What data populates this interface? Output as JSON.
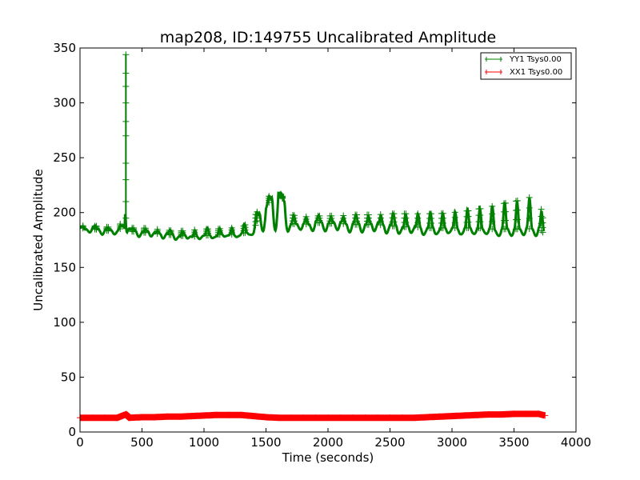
{
  "chart_data": {
    "type": "line",
    "title": "map208, ID:149755 Uncalibrated Amplitude",
    "xlabel": "Time (seconds)",
    "ylabel": "Uncalibrated Amplitude",
    "xlim": [
      0,
      4000
    ],
    "ylim": [
      0,
      350
    ],
    "xticks": [
      "0",
      "500",
      "1000",
      "1500",
      "2000",
      "2500",
      "3000",
      "3500",
      "4000"
    ],
    "yticks": [
      "0",
      "50",
      "100",
      "150",
      "200",
      "250",
      "300",
      "350"
    ],
    "grid": false,
    "legend": {
      "placement": "top-right",
      "entries": [
        "YY1 Tsys0.00",
        "XX1 Tsys0.00"
      ]
    },
    "series": [
      {
        "name": "YY1 Tsys0.00",
        "color": "#008000",
        "marker": "+",
        "x": [
          0,
          100,
          200,
          300,
          360,
          370,
          380,
          400,
          500,
          600,
          700,
          800,
          900,
          1000,
          1100,
          1200,
          1300,
          1400,
          1450,
          1500,
          1550,
          1600,
          1650,
          1700,
          1800,
          1900,
          2000,
          2100,
          2200,
          2300,
          2400,
          2500,
          2600,
          2700,
          2800,
          2900,
          3000,
          3100,
          3200,
          3300,
          3400,
          3500,
          3600,
          3700,
          3740
        ],
        "y": [
          186,
          185,
          184,
          182,
          190,
          344,
          195,
          183,
          182,
          181,
          180,
          179,
          178,
          179,
          180,
          180,
          181,
          183,
          200,
          204,
          215,
          218,
          210,
          190,
          189,
          191,
          190,
          190,
          189,
          189,
          189,
          188,
          187,
          187,
          186,
          186,
          186,
          186,
          186,
          185,
          185,
          185,
          185,
          186,
          181
        ],
        "peaks": [
          188,
          188,
          187,
          186,
          195,
          344,
          200,
          186,
          186,
          185,
          184,
          183,
          184,
          185,
          185,
          186,
          186,
          195,
          205,
          212,
          218,
          220,
          212,
          198,
          196,
          197,
          197,
          197,
          198,
          198,
          198,
          199,
          199,
          199,
          199,
          199,
          200,
          201,
          203,
          205,
          208,
          210,
          213,
          216,
          190
        ],
        "troughs": [
          183,
          182,
          181,
          180,
          182,
          185,
          182,
          180,
          179,
          178,
          177,
          176,
          176,
          177,
          177,
          177,
          178,
          180,
          181,
          182,
          183,
          184,
          183,
          183,
          184,
          184,
          184,
          184,
          183,
          183,
          183,
          182,
          181,
          181,
          180,
          180,
          180,
          180,
          180,
          179,
          179,
          179,
          179,
          180,
          180
        ]
      },
      {
        "name": "XX1 Tsys0.00",
        "color": "#ff0000",
        "marker": "+",
        "x": [
          0,
          100,
          200,
          300,
          370,
          400,
          500,
          600,
          700,
          800,
          900,
          1000,
          1100,
          1200,
          1300,
          1400,
          1500,
          1600,
          1700,
          1800,
          1900,
          2000,
          2100,
          2200,
          2300,
          2400,
          2500,
          2600,
          2700,
          2800,
          2900,
          3000,
          3100,
          3200,
          3300,
          3400,
          3500,
          3600,
          3700,
          3750
        ],
        "y": [
          13,
          13,
          13,
          13,
          16,
          13,
          13.5,
          13.5,
          14,
          14,
          14.5,
          15,
          15.5,
          15.5,
          15.5,
          14.5,
          13.5,
          13,
          13,
          13,
          13,
          13,
          13,
          13,
          13,
          13,
          13,
          13,
          13,
          13.5,
          14,
          14.5,
          15,
          15.5,
          16,
          16,
          16.5,
          16.5,
          16.5,
          15
        ]
      }
    ]
  }
}
